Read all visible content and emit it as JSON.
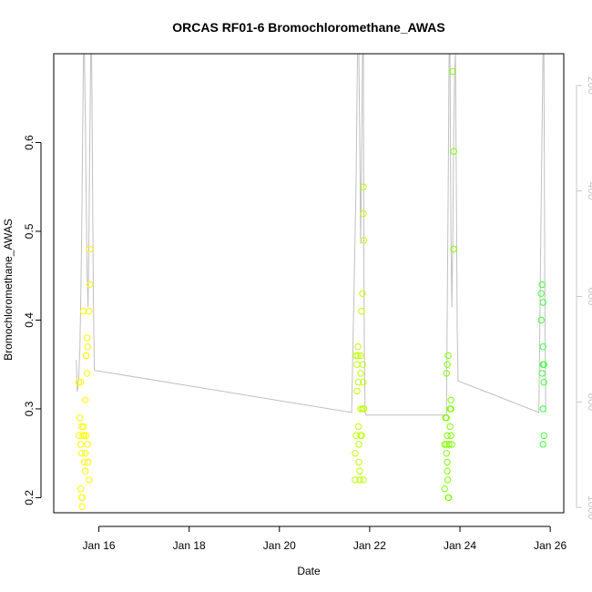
{
  "chart_data": {
    "type": "scatter",
    "title": "ORCAS RF01-6 Bromochloromethane_AWAS",
    "xlabel": "Date",
    "ylabel": "Bromochloromethane_AWAS",
    "x_unit": "day of January",
    "xlim": [
      15.0,
      26.3
    ],
    "ylim": [
      0.183,
      0.7
    ],
    "x_ticks": [
      16,
      18,
      20,
      22,
      24,
      26
    ],
    "x_tick_labels": [
      "Jan 16",
      "Jan 18",
      "Jan 20",
      "Jan 22",
      "Jan 24",
      "Jan 26"
    ],
    "y_ticks": [
      0.2,
      0.3,
      0.4,
      0.5,
      0.6
    ],
    "y_tick_labels": [
      "0.2",
      "0.3",
      "0.4",
      "0.5",
      "0.6"
    ],
    "secondary_axis": {
      "side": "right",
      "color": "#c8c8c8",
      "reversed": true,
      "ylim": [
        1010,
        140
      ],
      "ticks": [
        200,
        400,
        600,
        800,
        1000
      ],
      "tick_labels": [
        "200",
        "400",
        "600",
        "800",
        "1000"
      ]
    },
    "grid": false,
    "marker": "open-circle",
    "point_color_note": "color gradient yellow to green with time",
    "colors": {
      "yellow": "#ffff00",
      "green_early": "#bfff00",
      "green_mid": "#7fff00",
      "green_late": "#40ff40",
      "profile_line": "#c0c0c0"
    },
    "series": [
      {
        "color": "#ffff00",
        "points": [
          [
            15.55,
            0.33
          ],
          [
            15.6,
            0.33
          ],
          [
            15.56,
            0.27
          ],
          [
            15.58,
            0.29
          ],
          [
            15.62,
            0.28
          ],
          [
            15.6,
            0.26
          ],
          [
            15.62,
            0.25
          ],
          [
            15.6,
            0.21
          ],
          [
            15.62,
            0.2
          ],
          [
            15.63,
            0.2
          ],
          [
            15.63,
            0.19
          ],
          [
            15.65,
            0.27
          ],
          [
            15.66,
            0.28
          ],
          [
            15.68,
            0.27
          ],
          [
            15.7,
            0.31
          ],
          [
            15.7,
            0.25
          ],
          [
            15.68,
            0.24
          ],
          [
            15.7,
            0.23
          ],
          [
            15.72,
            0.27
          ],
          [
            15.72,
            0.36
          ],
          [
            15.74,
            0.38
          ],
          [
            15.74,
            0.34
          ],
          [
            15.75,
            0.37
          ],
          [
            15.75,
            0.26
          ],
          [
            15.76,
            0.24
          ],
          [
            15.78,
            0.22
          ],
          [
            15.66,
            0.41
          ],
          [
            15.78,
            0.41
          ],
          [
            15.8,
            0.48
          ],
          [
            15.8,
            0.44
          ],
          [
            15.72,
            0.36
          ]
        ]
      },
      {
        "color": "#bfff00",
        "points": [
          [
            21.68,
            0.25
          ],
          [
            21.68,
            0.22
          ],
          [
            21.7,
            0.27
          ],
          [
            21.72,
            0.32
          ],
          [
            21.72,
            0.35
          ],
          [
            21.74,
            0.36
          ],
          [
            21.75,
            0.33
          ],
          [
            21.75,
            0.28
          ],
          [
            21.76,
            0.26
          ],
          [
            21.76,
            0.24
          ],
          [
            21.78,
            0.23
          ],
          [
            21.78,
            0.22
          ],
          [
            21.8,
            0.36
          ],
          [
            21.8,
            0.34
          ],
          [
            21.8,
            0.3
          ],
          [
            21.8,
            0.27
          ],
          [
            21.82,
            0.41
          ],
          [
            21.84,
            0.43
          ],
          [
            21.84,
            0.3
          ],
          [
            21.85,
            0.35
          ],
          [
            21.86,
            0.33
          ],
          [
            21.86,
            0.22
          ],
          [
            21.87,
            0.49
          ],
          [
            21.86,
            0.52
          ],
          [
            21.86,
            0.55
          ],
          [
            21.87,
            0.3
          ],
          [
            21.7,
            0.36
          ],
          [
            21.74,
            0.37
          ],
          [
            21.82,
            0.27
          ]
        ]
      },
      {
        "color": "#7fff00",
        "points": [
          [
            23.66,
            0.21
          ],
          [
            23.66,
            0.26
          ],
          [
            23.68,
            0.29
          ],
          [
            23.7,
            0.25
          ],
          [
            23.7,
            0.26
          ],
          [
            23.72,
            0.27
          ],
          [
            23.72,
            0.24
          ],
          [
            23.72,
            0.23
          ],
          [
            23.73,
            0.22
          ],
          [
            23.74,
            0.2
          ],
          [
            23.75,
            0.2
          ],
          [
            23.7,
            0.34
          ],
          [
            23.72,
            0.35
          ],
          [
            23.74,
            0.36
          ],
          [
            23.76,
            0.26
          ],
          [
            23.78,
            0.28
          ],
          [
            23.78,
            0.3
          ],
          [
            23.8,
            0.31
          ],
          [
            23.8,
            0.3
          ],
          [
            23.8,
            0.27
          ],
          [
            23.82,
            0.26
          ],
          [
            23.84,
            0.68
          ],
          [
            23.86,
            0.59
          ],
          [
            23.86,
            0.48
          ],
          [
            23.7,
            0.29
          ]
        ]
      },
      {
        "color": "#40ff40",
        "points": [
          [
            25.82,
            0.44
          ],
          [
            25.8,
            0.43
          ],
          [
            25.84,
            0.42
          ],
          [
            25.8,
            0.4
          ],
          [
            25.84,
            0.37
          ],
          [
            25.84,
            0.35
          ],
          [
            25.86,
            0.35
          ],
          [
            25.82,
            0.34
          ],
          [
            25.86,
            0.33
          ],
          [
            25.84,
            0.3
          ],
          [
            25.86,
            0.27
          ],
          [
            25.84,
            0.26
          ]
        ]
      }
    ],
    "profile_line": {
      "axis": "right",
      "points": [
        [
          15.5,
          720
        ],
        [
          15.52,
          780
        ],
        [
          15.55,
          760
        ],
        [
          15.58,
          700
        ],
        [
          15.6,
          600
        ],
        [
          15.62,
          480
        ],
        [
          15.64,
          300
        ],
        [
          15.66,
          140
        ],
        [
          15.68,
          140
        ],
        [
          15.7,
          260
        ],
        [
          15.72,
          420
        ],
        [
          15.74,
          560
        ],
        [
          15.76,
          620
        ],
        [
          15.78,
          480
        ],
        [
          15.8,
          300
        ],
        [
          15.82,
          140
        ],
        [
          15.84,
          140
        ],
        [
          15.86,
          380
        ],
        [
          15.88,
          620
        ],
        [
          15.9,
          740
        ],
        [
          21.6,
          820
        ],
        [
          21.65,
          600
        ],
        [
          21.7,
          380
        ],
        [
          21.73,
          140
        ],
        [
          21.76,
          140
        ],
        [
          21.78,
          300
        ],
        [
          21.8,
          500
        ],
        [
          21.82,
          350
        ],
        [
          21.84,
          140
        ],
        [
          21.86,
          140
        ],
        [
          21.87,
          500
        ],
        [
          21.88,
          700
        ],
        [
          21.9,
          820
        ],
        [
          21.92,
          825
        ],
        [
          23.7,
          825
        ],
        [
          23.72,
          620
        ],
        [
          23.74,
          400
        ],
        [
          23.76,
          140
        ],
        [
          23.78,
          140
        ],
        [
          23.8,
          480
        ],
        [
          23.82,
          620
        ],
        [
          23.84,
          500
        ],
        [
          23.86,
          300
        ],
        [
          23.88,
          180
        ],
        [
          23.9,
          140
        ],
        [
          23.92,
          400
        ],
        [
          23.94,
          660
        ],
        [
          23.96,
          760
        ],
        [
          25.75,
          820
        ],
        [
          25.8,
          420
        ],
        [
          25.84,
          140
        ],
        [
          25.86,
          140
        ],
        [
          25.88,
          600
        ],
        [
          25.9,
          820
        ]
      ]
    }
  }
}
